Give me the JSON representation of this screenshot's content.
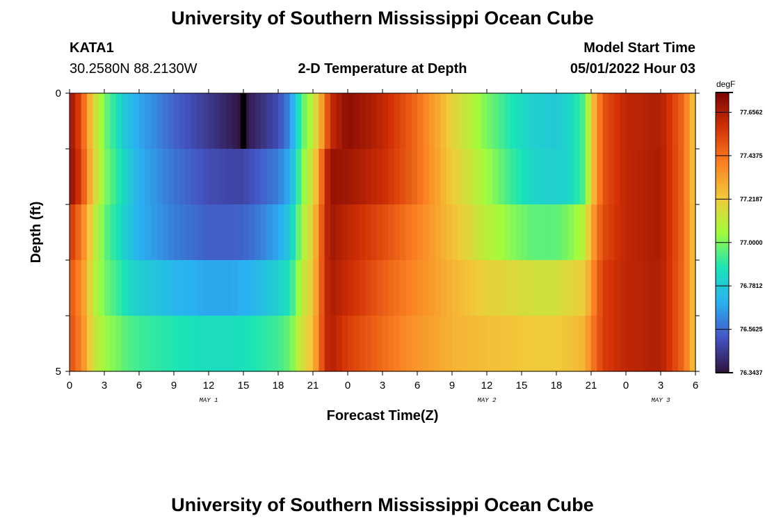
{
  "header": {
    "title": "University of Southern Mississippi Ocean Cube",
    "station": "KATA1",
    "location": "30.2580N  88.2130W",
    "subtitle": "2-D Temperature at Depth",
    "start_label": "Model Start Time",
    "start_value": "05/01/2022 Hour 03"
  },
  "footer": {
    "title": "University of Southern Mississippi Ocean Cube"
  },
  "colorbar": {
    "unit": "degF",
    "labels": [
      "77.6562",
      "77.4375",
      "77.2187",
      "77.0000",
      "76.7812",
      "76.5625",
      "76.3437"
    ],
    "colors": [
      "#30123b",
      "#4454c4",
      "#2ab0f2",
      "#1ae4b6",
      "#a2fc3c",
      "#f2c93a",
      "#fb8022",
      "#d23105",
      "#7a0403"
    ]
  },
  "chart_data": {
    "type": "heatmap",
    "title": "2-D Temperature at Depth",
    "xlabel": "Forecast Time(Z)",
    "ylabel": "Depth (ft)",
    "x_ticks": [
      "0",
      "3",
      "6",
      "9",
      "12",
      "15",
      "18",
      "21",
      "0",
      "3",
      "6",
      "9",
      "12",
      "15",
      "18",
      "21",
      "0",
      "3",
      "6"
    ],
    "x_range_hours": [
      0,
      54
    ],
    "day_labels": [
      {
        "label": "MAY 1",
        "hour": 12
      },
      {
        "label": "MAY 2",
        "hour": 36
      },
      {
        "label": "MAY 3",
        "hour": 51
      }
    ],
    "y_ticks": [
      "0",
      "5"
    ],
    "y_range_ft": [
      0,
      5
    ],
    "depth_layers_ft": [
      0,
      1,
      2,
      3,
      4,
      5
    ],
    "value_unit": "degF",
    "value_range": [
      76.3437,
      77.7562
    ],
    "profile_hours": [
      0,
      1,
      1.5,
      2,
      3,
      5,
      6,
      9,
      12,
      14,
      15,
      16,
      18,
      19,
      19.5,
      20,
      21,
      22,
      22.5,
      24,
      27,
      30,
      33,
      36,
      38,
      40,
      42,
      43,
      44.5,
      45,
      46,
      48,
      51,
      53,
      54
    ],
    "temperatures_degF": [
      [
        77.7,
        77.52,
        77.35,
        77.2,
        77.0,
        76.75,
        76.68,
        76.55,
        76.45,
        76.38,
        76.34,
        76.4,
        76.5,
        76.62,
        76.78,
        76.95,
        77.1,
        77.4,
        77.6,
        77.72,
        77.62,
        77.45,
        77.2,
        77.0,
        76.88,
        76.8,
        76.78,
        76.82,
        76.95,
        77.2,
        77.5,
        77.62,
        77.65,
        77.45,
        77.2
      ],
      [
        77.72,
        77.55,
        77.38,
        77.22,
        77.02,
        76.8,
        76.7,
        76.58,
        76.5,
        76.48,
        76.48,
        76.52,
        76.6,
        76.7,
        76.82,
        77.0,
        77.15,
        77.55,
        77.7,
        77.68,
        77.6,
        77.45,
        77.22,
        77.05,
        76.92,
        76.82,
        76.8,
        76.82,
        76.95,
        77.2,
        77.5,
        77.62,
        77.66,
        77.45,
        77.2
      ],
      [
        77.58,
        77.42,
        77.3,
        77.15,
        76.98,
        76.78,
        76.7,
        76.6,
        76.54,
        76.54,
        76.55,
        76.58,
        76.68,
        76.78,
        76.9,
        77.05,
        77.2,
        77.58,
        77.68,
        77.62,
        77.52,
        77.4,
        77.25,
        77.1,
        77.02,
        76.96,
        76.96,
        77.0,
        77.1,
        77.3,
        77.52,
        77.62,
        77.66,
        77.45,
        77.22
      ],
      [
        77.5,
        77.38,
        77.25,
        77.12,
        77.0,
        76.85,
        76.8,
        76.72,
        76.68,
        76.68,
        76.7,
        76.72,
        76.8,
        76.88,
        76.98,
        77.1,
        77.22,
        77.58,
        77.66,
        77.6,
        77.48,
        77.38,
        77.28,
        77.2,
        77.18,
        77.15,
        77.15,
        77.18,
        77.22,
        77.35,
        77.55,
        77.62,
        77.65,
        77.45,
        77.22
      ],
      [
        77.52,
        77.4,
        77.28,
        77.15,
        77.05,
        76.95,
        76.92,
        76.88,
        76.85,
        76.85,
        76.86,
        76.88,
        76.92,
        76.98,
        77.05,
        77.15,
        77.25,
        77.58,
        77.65,
        77.55,
        77.45,
        77.35,
        77.28,
        77.25,
        77.24,
        77.22,
        77.22,
        77.24,
        77.28,
        77.4,
        77.55,
        77.62,
        77.65,
        77.45,
        77.22
      ]
    ],
    "special_cells": [
      {
        "hour": 15,
        "depth_ft": 0,
        "note": "minimum at surface, rendered black"
      }
    ]
  }
}
